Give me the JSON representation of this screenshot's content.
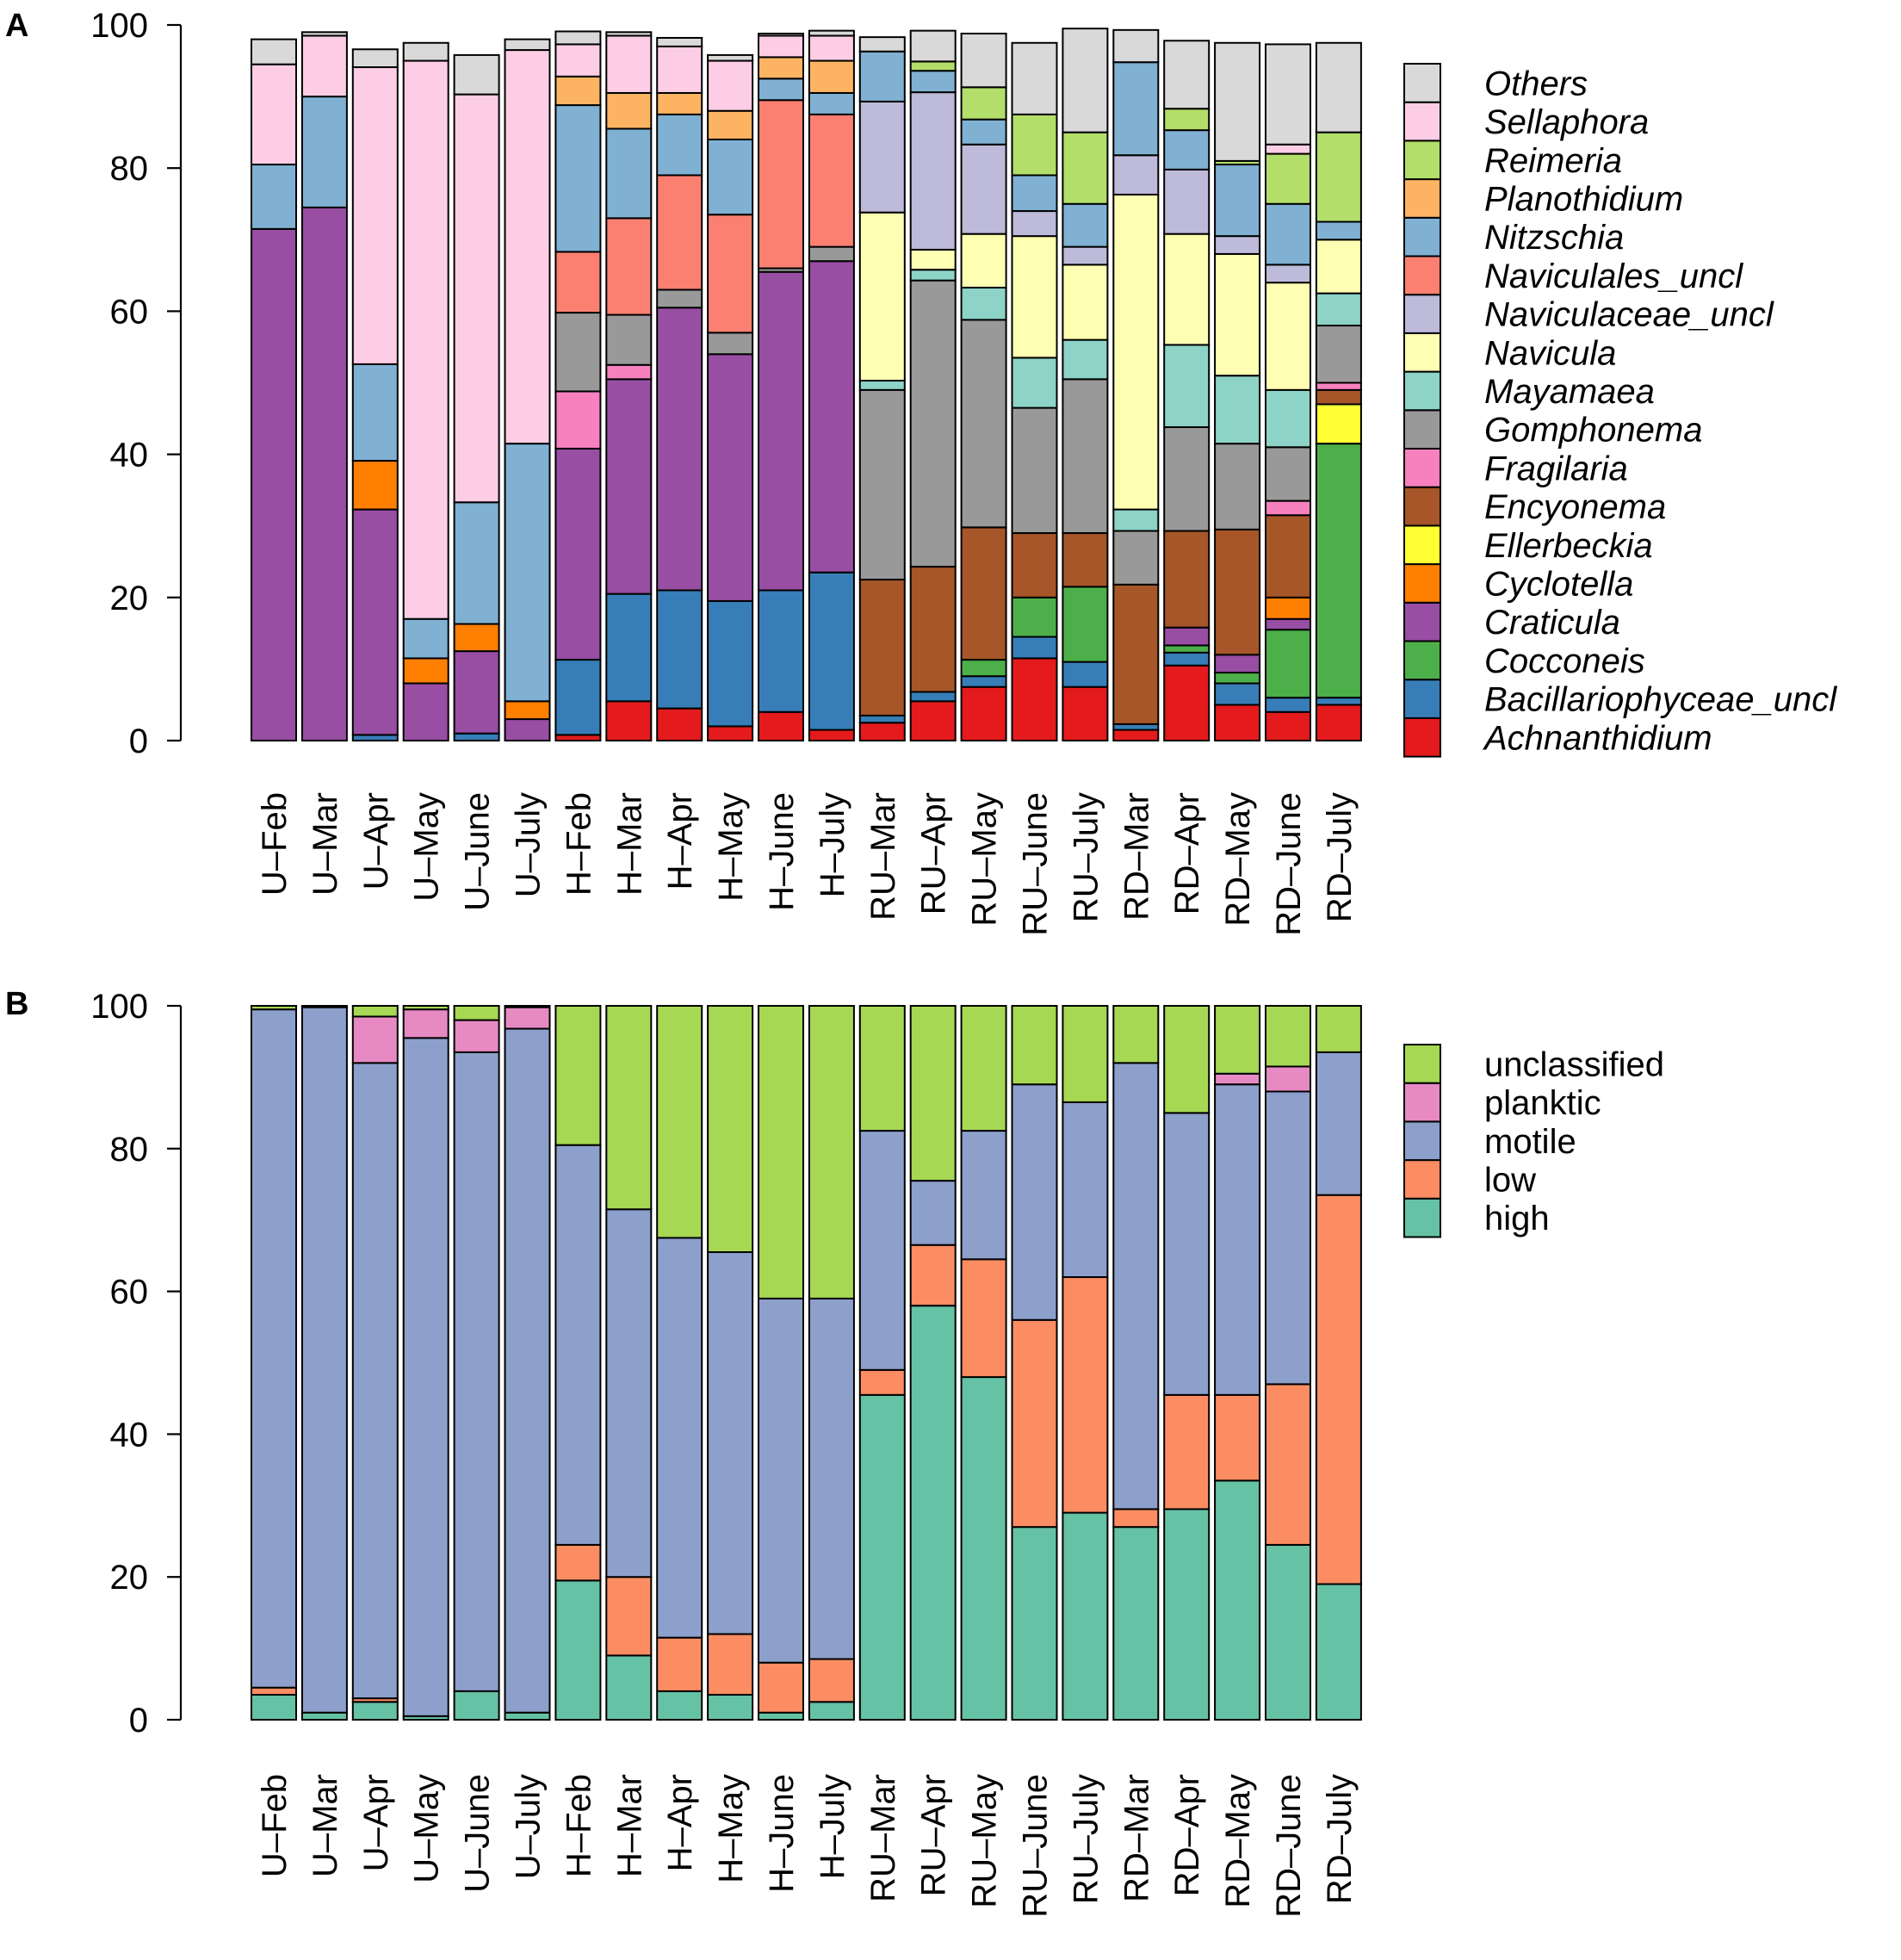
{
  "chart_data": [
    {
      "panel_label": "A",
      "type": "bar",
      "stacked": true,
      "percent": true,
      "ylim": [
        0,
        100
      ],
      "yticks": [
        0,
        20,
        40,
        60,
        80,
        100
      ],
      "legend_position": "right",
      "legend_italic": true,
      "categories": [
        "U–Feb",
        "U–Mar",
        "U–Apr",
        "U–May",
        "U–June",
        "U–July",
        "H–Feb",
        "H–Mar",
        "H–Apr",
        "H–May",
        "H–June",
        "H–July",
        "RU–Mar",
        "RU–Apr",
        "RU–May",
        "RU–June",
        "RU–July",
        "RD–Mar",
        "RD–Apr",
        "RD–May",
        "RD–June",
        "RD–July"
      ],
      "series": [
        {
          "name": "Achnanthidium",
          "color": "#E41A1C",
          "values": [
            0,
            0,
            0,
            0,
            0,
            0,
            0.8,
            5.5,
            4.5,
            2,
            4,
            1.5,
            2.5,
            5.5,
            7.5,
            11.5,
            7.5,
            1.5,
            10.5,
            5,
            4,
            5
          ]
        },
        {
          "name": "Bacillariophyceae_uncl",
          "color": "#377EB8",
          "values": [
            0,
            0,
            0.8,
            0,
            1,
            0,
            10.5,
            15,
            16.5,
            17.5,
            17,
            22,
            1,
            1.3,
            1.5,
            3,
            3.5,
            0.8,
            1.8,
            3,
            2,
            1
          ]
        },
        {
          "name": "Cocconeis",
          "color": "#4DAF4A",
          "values": [
            0,
            0,
            0,
            0,
            0,
            0,
            0,
            0,
            0,
            0,
            0,
            0,
            0,
            0,
            2.3,
            5.5,
            10.5,
            0,
            1,
            1.5,
            9.5,
            35.5
          ]
        },
        {
          "name": "Craticula",
          "color": "#984EA3",
          "values": [
            71.5,
            74.5,
            31.5,
            8,
            11.5,
            3,
            29.5,
            30,
            39.5,
            34.5,
            44.5,
            43.5,
            0,
            0,
            0,
            0,
            0,
            0,
            2.5,
            2.5,
            1.5,
            0
          ]
        },
        {
          "name": "Cyclotella",
          "color": "#FF7F00",
          "values": [
            0,
            0,
            6.8,
            3.5,
            3.8,
            2.5,
            0,
            0,
            0,
            0,
            0,
            0,
            0,
            0,
            0,
            0,
            0,
            0,
            0,
            0,
            3,
            0
          ]
        },
        {
          "name": "Ellerbeckia",
          "color": "#FFFF33",
          "values": [
            0,
            0,
            0,
            0,
            0,
            0,
            0,
            0,
            0,
            0,
            0,
            0,
            0,
            0,
            0,
            0,
            0,
            0,
            0,
            0,
            0,
            5.5
          ]
        },
        {
          "name": "Encyonema",
          "color": "#A65628",
          "values": [
            0,
            0,
            0,
            0,
            0,
            0,
            0,
            0,
            0,
            0,
            0,
            0,
            19,
            17.5,
            18.5,
            9,
            7.5,
            19.5,
            13.5,
            17.5,
            11.5,
            2
          ]
        },
        {
          "name": "Fragilaria",
          "color": "#F781BF",
          "values": [
            0,
            0,
            0,
            0,
            0,
            0,
            8,
            2,
            0,
            0,
            0,
            0,
            0,
            0,
            0,
            0,
            0,
            0,
            0,
            0,
            2,
            1
          ]
        },
        {
          "name": "Gomphonema",
          "color": "#999999",
          "values": [
            0,
            0,
            0,
            0,
            0,
            0,
            11,
            7,
            2.5,
            3,
            0.5,
            2,
            26.5,
            40,
            29,
            17.5,
            21.5,
            7.5,
            14.5,
            12,
            7.5,
            8
          ]
        },
        {
          "name": "Mayamaea",
          "color": "#8DD3C7",
          "values": [
            0,
            0,
            0,
            0,
            0,
            0,
            0,
            0,
            0,
            0,
            0,
            0,
            1.3,
            1.5,
            4.5,
            7,
            5.5,
            3,
            11.5,
            9.5,
            8,
            4.5
          ]
        },
        {
          "name": "Navicula",
          "color": "#FFFFB3",
          "values": [
            0,
            0,
            0,
            0,
            0,
            0,
            0,
            0,
            0,
            0,
            0,
            0,
            23.5,
            2.8,
            7.5,
            17,
            10.5,
            44,
            15.5,
            17,
            15,
            7.5
          ]
        },
        {
          "name": "Naviculaceae_uncl",
          "color": "#BEBADA",
          "values": [
            0,
            0,
            0,
            0,
            0,
            0,
            0,
            0,
            0,
            0,
            0,
            0,
            15.5,
            22,
            12.5,
            3.5,
            2.5,
            5.5,
            9,
            2.5,
            2.5,
            0
          ]
        },
        {
          "name": "Naviculales_uncl",
          "color": "#FB8072",
          "values": [
            0,
            0,
            0,
            0,
            0,
            0,
            8.5,
            13.5,
            16,
            16.5,
            23.5,
            18.5,
            0,
            0,
            0,
            0,
            0,
            0,
            0,
            0,
            0,
            0
          ]
        },
        {
          "name": "Nitzschia",
          "color": "#80B1D3",
          "values": [
            9,
            15.5,
            13.5,
            5.5,
            17,
            36,
            20.5,
            12.5,
            8.5,
            10.5,
            3,
            3,
            7,
            3,
            3.5,
            5,
            6,
            13,
            5.5,
            10,
            8.5,
            2.5
          ]
        },
        {
          "name": "Planothidium",
          "color": "#FDB462",
          "values": [
            0,
            0,
            0,
            0,
            0,
            0,
            4,
            5,
            3,
            4,
            3,
            4.5,
            0,
            0,
            0,
            0,
            0,
            0,
            0,
            0,
            0,
            0
          ]
        },
        {
          "name": "Reimeria",
          "color": "#B3DE69",
          "values": [
            0,
            0,
            0,
            0,
            0,
            0,
            0,
            0,
            0,
            0,
            0,
            0,
            0,
            1.3,
            4.5,
            8.5,
            10,
            0,
            3,
            0.5,
            7,
            12.5
          ]
        },
        {
          "name": "Sellaphora",
          "color": "#FCCDE5",
          "values": [
            14,
            8.5,
            41.5,
            78,
            57,
            55,
            4.5,
            8,
            6.5,
            7,
            3,
            3.5,
            0,
            0,
            0,
            0,
            0,
            0,
            0,
            0,
            1.3,
            0
          ]
        },
        {
          "name": "Others",
          "color": "#D9D9D9",
          "values": [
            3.5,
            0.5,
            2.5,
            2.5,
            5.5,
            1.5,
            1.8,
            0.5,
            1.2,
            0.8,
            0.3,
            0.7,
            2,
            4.3,
            7.5,
            10,
            14.5,
            4.5,
            9.5,
            16.5,
            14,
            12.5
          ]
        }
      ]
    },
    {
      "panel_label": "B",
      "type": "bar",
      "stacked": true,
      "percent": true,
      "ylim": [
        0,
        100
      ],
      "yticks": [
        0,
        20,
        40,
        60,
        80,
        100
      ],
      "legend_position": "right",
      "legend_italic": false,
      "categories": [
        "U–Feb",
        "U–Mar",
        "U–Apr",
        "U–May",
        "U–June",
        "U–July",
        "H–Feb",
        "H–Mar",
        "H–Apr",
        "H–May",
        "H–June",
        "H–July",
        "RU–Mar",
        "RU–Apr",
        "RU–May",
        "RU–June",
        "RU–July",
        "RD–Mar",
        "RD–Apr",
        "RD–May",
        "RD–June",
        "RD–July"
      ],
      "series": [
        {
          "name": "high",
          "color": "#66C2A5",
          "values": [
            3.5,
            1,
            2.5,
            0.5,
            4,
            1,
            19.5,
            9,
            4,
            3.5,
            1,
            2.5,
            45.5,
            58,
            48,
            27,
            29,
            27,
            29.5,
            33.5,
            24.5,
            19
          ]
        },
        {
          "name": "low",
          "color": "#FC8D62",
          "values": [
            1,
            0,
            0.5,
            0,
            0,
            0,
            5,
            11,
            7.5,
            8.5,
            7,
            6,
            3.5,
            8.5,
            16.5,
            29,
            33,
            2.5,
            16,
            12,
            22.5,
            54.5
          ]
        },
        {
          "name": "motile",
          "color": "#8DA0CB",
          "values": [
            95,
            98.8,
            89,
            95,
            89.5,
            95.8,
            56,
            51.5,
            56,
            53.5,
            51,
            50.5,
            33.5,
            9,
            18,
            33,
            24.5,
            62.5,
            39.5,
            43.5,
            41,
            20
          ]
        },
        {
          "name": "planktic",
          "color": "#E78AC3",
          "values": [
            0,
            0,
            6.5,
            4,
            4.5,
            3,
            0,
            0,
            0,
            0,
            0,
            0,
            0,
            0,
            0,
            0,
            0,
            0,
            0,
            1.5,
            3.5,
            0
          ]
        },
        {
          "name": "unclassified",
          "color": "#A6D854",
          "values": [
            0.5,
            0.2,
            1.5,
            0.5,
            2,
            0.2,
            19.5,
            28.5,
            32.5,
            34.5,
            41,
            41,
            17.5,
            24.5,
            17.5,
            11,
            13.5,
            8,
            15,
            9.5,
            8.5,
            6.5
          ]
        }
      ]
    }
  ]
}
